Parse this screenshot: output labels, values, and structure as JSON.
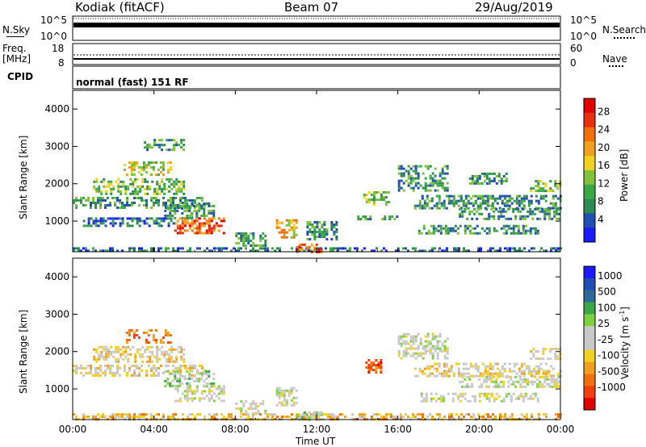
{
  "header": {
    "station": "Kodiak (fitACF)",
    "beam": "Beam 07",
    "date": "29/Aug/2019"
  },
  "strips": {
    "nsky_label": "N.Sky",
    "nsky_ticks": [
      "10^5",
      "10^0"
    ],
    "nsearch_label": "N.Search",
    "nsearch_ticks": [
      "10^5",
      "10^0"
    ],
    "freq_label": "Freq.",
    "freq_unit": "[MHz]",
    "freq_ticks": [
      "18",
      "8"
    ],
    "nave_label": "Nave",
    "nave_ticks": [
      "60",
      "0"
    ],
    "cpid_label": "CPID",
    "cpid_text": "normal (fast) 151 RF"
  },
  "colors": {
    "power": [
      "#1a1aff",
      "#1f4fb0",
      "#2d8a52",
      "#3aa846",
      "#7fc13a",
      "#f0d020",
      "#f0a020",
      "#f07010",
      "#e83010",
      "#e00000"
    ],
    "velocity": [
      "#e00000",
      "#f04010",
      "#f07010",
      "#f0a020",
      "#f0d020",
      "#c8c8c8",
      "#c8c8c8",
      "#7fd040",
      "#3aa846",
      "#2d6a9a",
      "#1f4fb0",
      "#1a1aff"
    ]
  },
  "chart_data": [
    {
      "type": "heatmap",
      "panel": "power",
      "ylabel": "Slant Range [km]",
      "ylim": [
        180,
        4500
      ],
      "yticks": [
        "4000",
        "3000",
        "2000",
        "1000"
      ],
      "xlim": [
        0,
        24
      ],
      "colorbar": {
        "label": "Power [dB]",
        "ticks": [
          "28",
          "24",
          "20",
          "16",
          "12",
          "8",
          "4"
        ],
        "range": [
          0,
          32
        ]
      },
      "regions": [
        {
          "t0": 0.0,
          "t1": 24.0,
          "r0": 180,
          "r1": 300,
          "level": 7
        },
        {
          "t0": 0.0,
          "t1": 6.5,
          "r0": 1350,
          "r1": 1650,
          "level": 10
        },
        {
          "t0": 1.0,
          "t1": 5.5,
          "r0": 1750,
          "r1": 2150,
          "level": 14
        },
        {
          "t0": 2.5,
          "t1": 4.8,
          "r0": 2250,
          "r1": 2600,
          "level": 18
        },
        {
          "t0": 3.5,
          "t1": 5.5,
          "r0": 2900,
          "r1": 3200,
          "level": 9
        },
        {
          "t0": 4.5,
          "t1": 7.0,
          "r0": 1100,
          "r1": 1500,
          "level": 11
        },
        {
          "t0": 5.0,
          "t1": 7.5,
          "r0": 700,
          "r1": 1100,
          "level": 27
        },
        {
          "t0": 0.5,
          "t1": 5.0,
          "r0": 900,
          "r1": 1100,
          "level": 8
        },
        {
          "t0": 8.0,
          "t1": 9.5,
          "r0": 350,
          "r1": 700,
          "level": 10
        },
        {
          "t0": 10.0,
          "t1": 11.0,
          "r0": 550,
          "r1": 1050,
          "level": 20
        },
        {
          "t0": 11.0,
          "t1": 12.3,
          "r0": 200,
          "r1": 400,
          "level": 28
        },
        {
          "t0": 11.5,
          "t1": 13.0,
          "r0": 500,
          "r1": 1000,
          "level": 12
        },
        {
          "t0": 14.3,
          "t1": 15.5,
          "r0": 1450,
          "r1": 1800,
          "level": 13
        },
        {
          "t0": 14.0,
          "t1": 16.0,
          "r0": 1050,
          "r1": 1150,
          "level": 10
        },
        {
          "t0": 16.0,
          "t1": 18.5,
          "r0": 1850,
          "r1": 2500,
          "level": 11
        },
        {
          "t0": 16.8,
          "t1": 24.0,
          "r0": 1350,
          "r1": 1700,
          "level": 9
        },
        {
          "t0": 17.0,
          "t1": 23.0,
          "r0": 650,
          "r1": 900,
          "level": 10
        },
        {
          "t0": 19.0,
          "t1": 24.0,
          "r0": 1050,
          "r1": 1350,
          "level": 12
        },
        {
          "t0": 19.5,
          "t1": 21.5,
          "r0": 2000,
          "r1": 2300,
          "level": 9
        },
        {
          "t0": 22.5,
          "t1": 24.0,
          "r0": 1800,
          "r1": 2100,
          "level": 14
        }
      ]
    },
    {
      "type": "heatmap",
      "panel": "velocity",
      "ylabel": "Slant Range [km]",
      "xlabel": "Time UT",
      "ylim": [
        180,
        4500
      ],
      "yticks": [
        "4000",
        "3000",
        "2000",
        "1000"
      ],
      "xlim": [
        0,
        24
      ],
      "xticks": [
        "00:00",
        "04:00",
        "08:00",
        "12:00",
        "16:00",
        "20:00",
        "00:00"
      ],
      "colorbar": {
        "label": "Velocity [m s",
        "label_sup": "-1",
        "label_end": "]",
        "ticks": [
          "1000",
          "500",
          "100",
          "25",
          "-25",
          "-100",
          "-500",
          "-1000"
        ]
      },
      "regions": [
        {
          "t0": 0.0,
          "t1": 24.0,
          "r0": 180,
          "r1": 350,
          "level": 4
        },
        {
          "t0": 0.0,
          "t1": 6.5,
          "r0": 1350,
          "r1": 1650,
          "level": 5
        },
        {
          "t0": 1.0,
          "t1": 5.5,
          "r0": 1750,
          "r1": 2150,
          "level": 5
        },
        {
          "t0": 2.5,
          "t1": 4.8,
          "r0": 2250,
          "r1": 2600,
          "level": 3
        },
        {
          "t0": 4.5,
          "t1": 7.0,
          "r0": 1100,
          "r1": 1500,
          "level": 7
        },
        {
          "t0": 5.0,
          "t1": 7.5,
          "r0": 700,
          "r1": 1100,
          "level": 6
        },
        {
          "t0": 8.0,
          "t1": 9.5,
          "r0": 350,
          "r1": 700,
          "level": 6
        },
        {
          "t0": 10.0,
          "t1": 11.0,
          "r0": 550,
          "r1": 1050,
          "level": 6
        },
        {
          "t0": 11.0,
          "t1": 12.3,
          "r0": 200,
          "r1": 400,
          "level": 7
        },
        {
          "t0": 14.4,
          "t1": 15.2,
          "r0": 1450,
          "r1": 1800,
          "level": 2
        },
        {
          "t0": 16.0,
          "t1": 18.5,
          "r0": 1850,
          "r1": 2500,
          "level": 6
        },
        {
          "t0": 16.8,
          "t1": 24.0,
          "r0": 1350,
          "r1": 1700,
          "level": 5
        },
        {
          "t0": 17.0,
          "t1": 23.0,
          "r0": 650,
          "r1": 900,
          "level": 6
        },
        {
          "t0": 19.0,
          "t1": 24.0,
          "r0": 1050,
          "r1": 1350,
          "level": 6
        },
        {
          "t0": 22.5,
          "t1": 24.0,
          "r0": 1800,
          "r1": 2100,
          "level": 5
        }
      ]
    }
  ]
}
